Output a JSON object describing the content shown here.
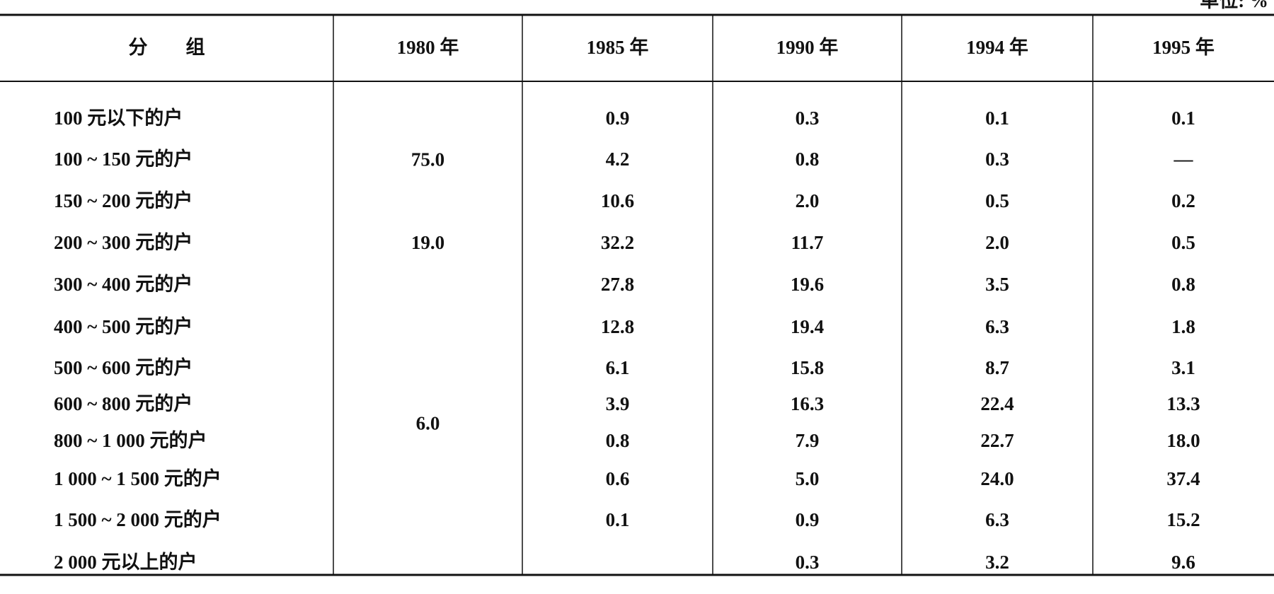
{
  "unit": "单位: %",
  "table": {
    "header": [
      "分　　组",
      "1980 年",
      "1985 年",
      "1990 年",
      "1994 年",
      "1995 年"
    ],
    "col_1980": [
      "75.0",
      "19.0",
      "6.0"
    ],
    "rows": [
      {
        "label": "100 元以下的户",
        "cells": [
          "0.9",
          "0.3",
          "0.1",
          "0.1"
        ]
      },
      {
        "label": "100 ~ 150 元的户",
        "cells": [
          "4.2",
          "0.8",
          "0.3",
          "—"
        ]
      },
      {
        "label": "150 ~ 200 元的户",
        "cells": [
          "10.6",
          "2.0",
          "0.5",
          "0.2"
        ]
      },
      {
        "label": "200 ~ 300 元的户",
        "cells": [
          "32.2",
          "11.7",
          "2.0",
          "0.5"
        ]
      },
      {
        "label": "300 ~ 400 元的户",
        "cells": [
          "27.8",
          "19.6",
          "3.5",
          "0.8"
        ]
      },
      {
        "label": "400 ~ 500 元的户",
        "cells": [
          "12.8",
          "19.4",
          "6.3",
          "1.8"
        ]
      },
      {
        "label": "500 ~ 600 元的户",
        "cells": [
          "6.1",
          "15.8",
          "8.7",
          "3.1"
        ]
      },
      {
        "label": "600 ~ 800 元的户",
        "cells": [
          "3.9",
          "16.3",
          "22.4",
          "13.3"
        ]
      },
      {
        "label": "800 ~ 1 000 元的户",
        "cells": [
          "0.8",
          "7.9",
          "22.7",
          "18.0"
        ]
      },
      {
        "label": "1 000 ~ 1 500 元的户",
        "cells": [
          "0.6",
          "5.0",
          "24.0",
          "37.4"
        ]
      },
      {
        "label": "1 500 ~ 2 000 元的户",
        "cells": [
          "0.1",
          "0.9",
          "6.3",
          "15.2"
        ]
      },
      {
        "label": "2 000 元以上的户",
        "cells": [
          null,
          "0.3",
          "3.2",
          "9.6"
        ]
      }
    ]
  }
}
